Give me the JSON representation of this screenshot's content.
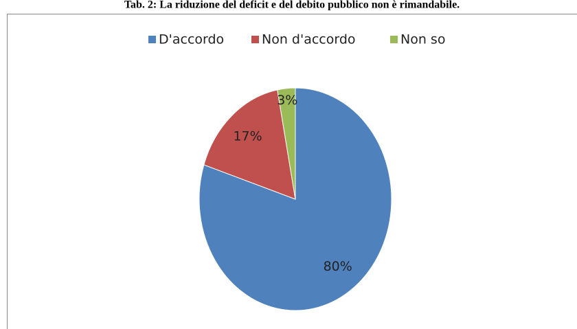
{
  "chart_data": {
    "type": "pie",
    "title": "Tab. 2: La riduzione del deficit e del debito pubblico non è rimandabile.",
    "categories": [
      "D'accordo",
      "Non d'accordo",
      "Non so"
    ],
    "values": [
      80,
      17,
      3
    ],
    "value_labels": [
      "80%",
      "17%",
      "3%"
    ],
    "colors": [
      "#4f81bd",
      "#c0504d",
      "#9bbb59"
    ],
    "legend": "top"
  }
}
